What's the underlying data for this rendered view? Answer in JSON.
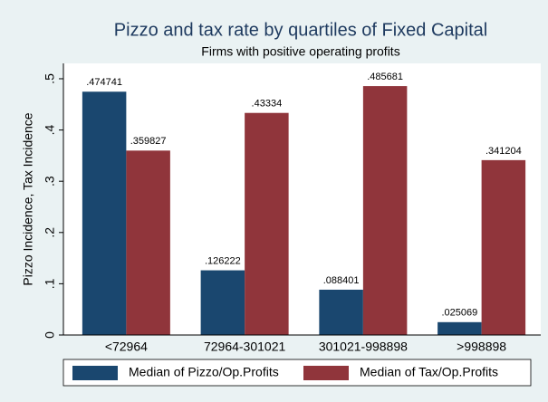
{
  "chart_data": {
    "type": "bar",
    "title": "Pizzo and tax rate by quartiles of Fixed Capital",
    "subtitle": "Firms with positive operating profits",
    "y_label": "Pizzo Incidence, Tax Incidence",
    "categories": [
      "<72964",
      "72964-301021",
      "301021-998898",
      ">998898"
    ],
    "series": [
      {
        "name": "Median of Pizzo/Op.Profits",
        "color": "#1a476f",
        "values": [
          0.474741,
          0.126222,
          0.088401,
          0.025069
        ],
        "value_labels": [
          ".474741",
          ".126222",
          ".088401",
          ".025069"
        ]
      },
      {
        "name": "Median of Tax/Op.Profits",
        "color": "#90353b",
        "values": [
          0.359827,
          0.43334,
          0.485681,
          0.341204
        ],
        "value_labels": [
          ".359827",
          ".43334",
          ".485681",
          ".341204"
        ]
      }
    ],
    "ylim": [
      0,
      0.53
    ],
    "yticks": [
      0,
      {
        "value": 0.1,
        "label": ".1"
      },
      {
        "value": 0.2,
        "label": ".2"
      },
      {
        "value": 0.3,
        "label": ".3"
      },
      {
        "value": 0.4,
        "label": ".4"
      },
      {
        "value": 0.5,
        "label": ".5"
      }
    ],
    "legend_position": "bottom"
  }
}
